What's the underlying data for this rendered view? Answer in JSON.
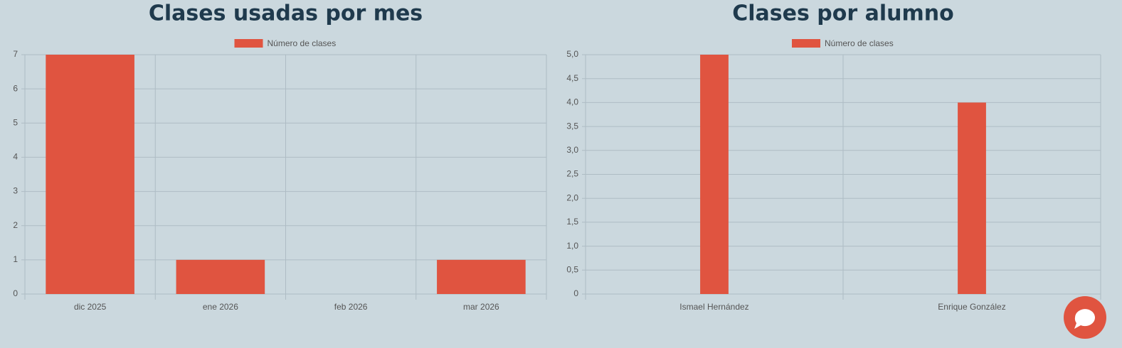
{
  "chart_data": [
    {
      "type": "bar",
      "title": "Clases usadas por mes",
      "categories": [
        "dic 2025",
        "ene 2026",
        "feb 2026",
        "mar 2026"
      ],
      "series": [
        {
          "name": "Número de clases",
          "color": "#e05440",
          "values": [
            7,
            1,
            0,
            1
          ]
        }
      ],
      "ylim": [
        0,
        7
      ],
      "yticks": [
        0,
        1,
        2,
        3,
        4,
        5,
        6,
        7
      ],
      "grid": true,
      "legend": "top"
    },
    {
      "type": "bar",
      "title": "Clases por alumno",
      "categories": [
        "Ismael Hernández",
        "Enrique González"
      ],
      "series": [
        {
          "name": "Número de clases",
          "color": "#e05440",
          "values": [
            5,
            4
          ]
        }
      ],
      "ylim": [
        0,
        5
      ],
      "yticks": [
        0,
        {
          "value": 0.5,
          "label": "0,5"
        },
        {
          "value": 1,
          "label": "1,0"
        },
        {
          "value": 1.5,
          "label": "1,5"
        },
        {
          "value": 2,
          "label": "2,0"
        },
        {
          "value": 2.5,
          "label": "2,5"
        },
        {
          "value": 3,
          "label": "3,0"
        },
        {
          "value": 3.5,
          "label": "3,5"
        },
        {
          "value": 4,
          "label": "4,0"
        },
        {
          "value": 4.5,
          "label": "4,5"
        },
        {
          "value": 5,
          "label": "5,0"
        }
      ],
      "grid": true,
      "legend": "top"
    }
  ]
}
